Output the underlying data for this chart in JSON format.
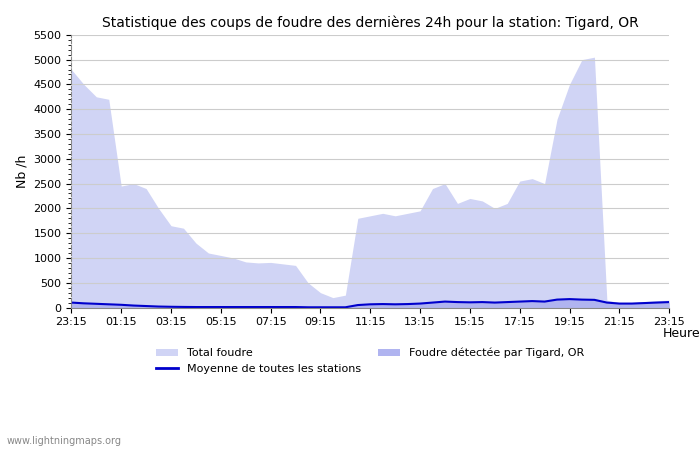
{
  "title": "Statistique des coups de foudre des dernières 24h pour la station: Tigard, OR",
  "xlabel": "Heure",
  "ylabel": "Nb /h",
  "ylim": [
    0,
    5500
  ],
  "yticks": [
    0,
    500,
    1000,
    1500,
    2000,
    2500,
    3000,
    3500,
    4000,
    4500,
    5000,
    5500
  ],
  "xtick_labels": [
    "23:15",
    "01:15",
    "03:15",
    "05:15",
    "07:15",
    "09:15",
    "11:15",
    "13:15",
    "15:15",
    "17:15",
    "19:15",
    "21:15",
    "23:15"
  ],
  "background_color": "#ffffff",
  "plot_bg_color": "#ffffff",
  "grid_color": "#cccccc",
  "fill_total_color": "#d0d4f5",
  "fill_local_color": "#b0b4f0",
  "line_color": "#0000cc",
  "watermark": "www.lightningmaps.org",
  "legend_total": "Total foudre",
  "legend_avg": "Moyenne de toutes les stations",
  "legend_local": "Foudre détectée par Tigard, OR",
  "x_points": [
    0,
    1,
    2,
    3,
    4,
    5,
    6,
    7,
    8,
    9,
    10,
    11,
    12,
    13,
    14,
    15,
    16,
    17,
    18,
    19,
    20,
    21,
    22,
    23,
    24,
    25,
    26,
    27,
    28,
    29,
    30,
    31,
    32,
    33,
    34,
    35,
    36,
    37,
    38,
    39,
    40,
    41,
    42,
    43,
    44,
    45,
    46,
    47,
    48
  ],
  "total_foudre": [
    4800,
    4500,
    4250,
    4200,
    2450,
    2500,
    2400,
    2000,
    1650,
    1600,
    1300,
    1100,
    1050,
    1000,
    920,
    900,
    910,
    880,
    850,
    500,
    300,
    200,
    250,
    1800,
    1850,
    1900,
    1850,
    1900,
    1950,
    2400,
    2500,
    2100,
    2200,
    2150,
    2000,
    2100,
    2550,
    2600,
    2500,
    3800,
    4500,
    5000,
    5050,
    150,
    100,
    100,
    120,
    140,
    150
  ],
  "local_foudre": [
    100,
    80,
    70,
    60,
    50,
    40,
    30,
    20,
    15,
    10,
    10,
    10,
    10,
    10,
    10,
    10,
    10,
    10,
    10,
    5,
    5,
    5,
    5,
    50,
    60,
    70,
    60,
    70,
    80,
    100,
    120,
    110,
    100,
    110,
    100,
    110,
    120,
    130,
    120,
    160,
    170,
    160,
    150,
    100,
    80,
    80,
    90,
    100,
    110
  ],
  "avg_line": [
    100,
    85,
    75,
    65,
    55,
    40,
    30,
    20,
    15,
    12,
    10,
    10,
    10,
    10,
    10,
    10,
    10,
    10,
    10,
    5,
    5,
    5,
    5,
    50,
    65,
    70,
    65,
    70,
    80,
    100,
    120,
    110,
    105,
    110,
    100,
    110,
    120,
    130,
    120,
    160,
    170,
    160,
    155,
    100,
    80,
    80,
    90,
    100,
    110
  ]
}
